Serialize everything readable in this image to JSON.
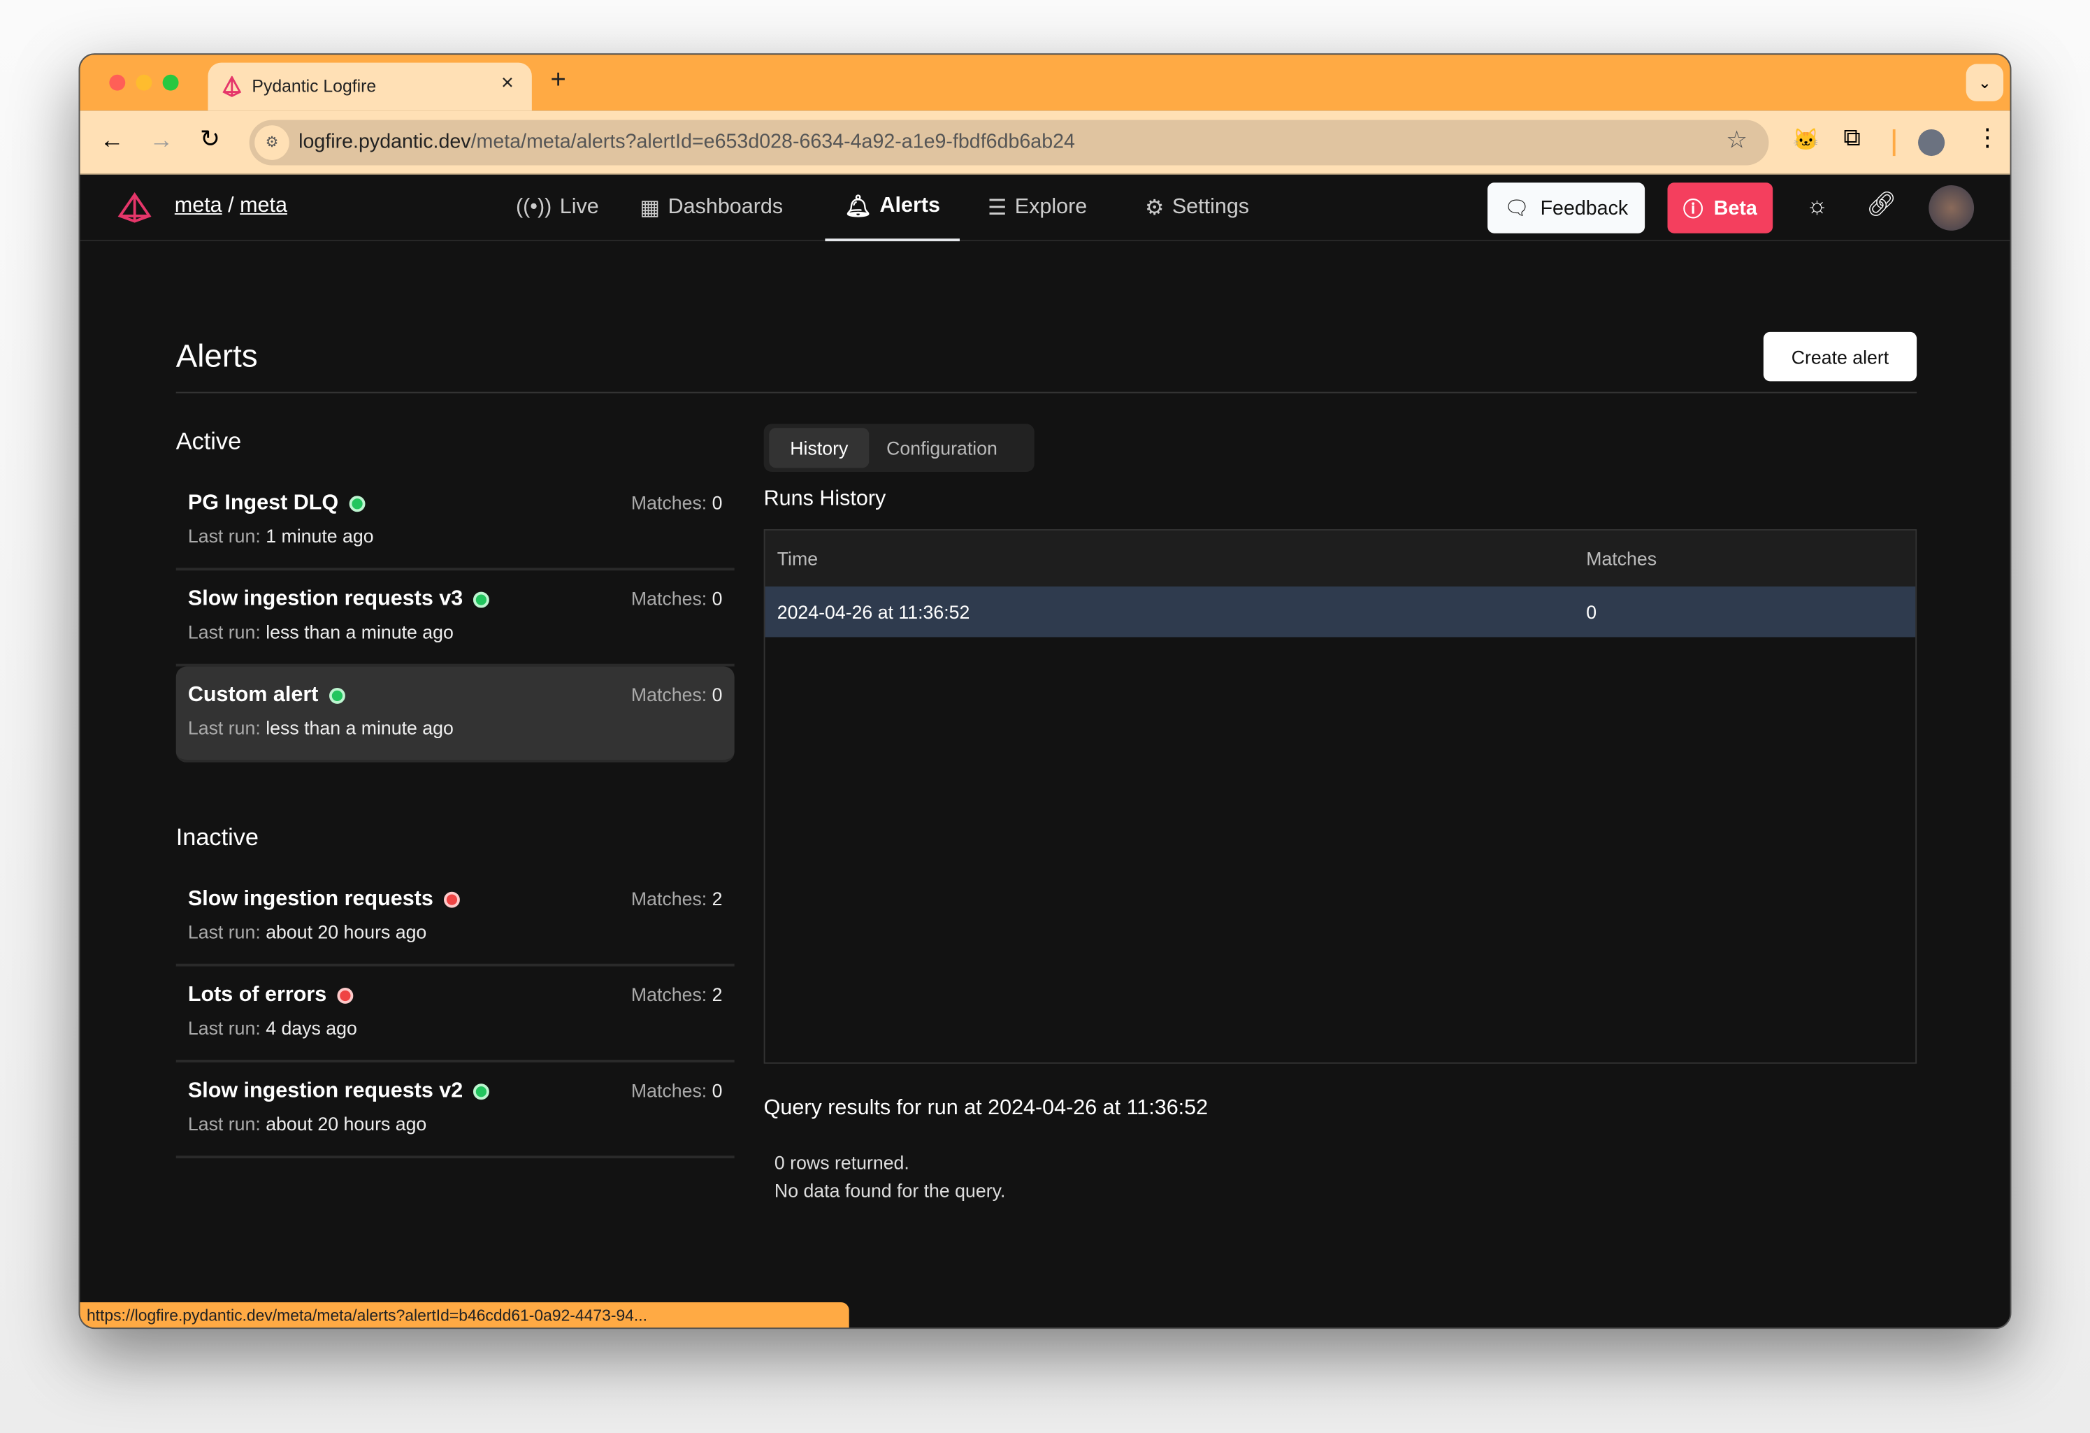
{
  "browser": {
    "tab_title": "Pydantic Logfire",
    "url_host": "logfire.pydantic.dev",
    "url_path": "/meta/meta/alerts?alertId=e653d028-6634-4a92-a1e9-fbdf6db6ab24",
    "status_url": "https://logfire.pydantic.dev/meta/meta/alerts?alertId=b46cdd61-0a92-4473-94..."
  },
  "header": {
    "org": "meta",
    "sep": "/",
    "project": "meta",
    "nav": [
      {
        "label": "Live",
        "icon": "broadcast-icon"
      },
      {
        "label": "Dashboards",
        "icon": "dashboard-icon"
      },
      {
        "label": "Alerts",
        "icon": "bell-icon",
        "active": true
      },
      {
        "label": "Explore",
        "icon": "explore-icon"
      },
      {
        "label": "Settings",
        "icon": "gear-icon"
      }
    ],
    "feedback": "Feedback",
    "beta": "Beta"
  },
  "colors": {
    "accent": "#F43F5E",
    "browser": "#FFAA44",
    "active": "#22c55e",
    "inactive": "#ef4444"
  },
  "page": {
    "title": "Alerts",
    "create": "Create alert",
    "active_heading": "Active",
    "inactive_heading": "Inactive",
    "last_run_label": "Last run:",
    "matches_label": "Matches:"
  },
  "active": [
    {
      "name": "PG Ingest DLQ",
      "status": "ok",
      "last_run": "1 minute ago",
      "matches": "0"
    },
    {
      "name": "Slow ingestion requests v3",
      "status": "ok",
      "last_run": "less than a minute ago",
      "matches": "0"
    },
    {
      "name": "Custom alert",
      "status": "ok",
      "last_run": "less than a minute ago",
      "matches": "0",
      "selected": true
    }
  ],
  "inactive": [
    {
      "name": "Slow ingestion requests",
      "status": "error",
      "last_run": "about 20 hours ago",
      "matches": "2"
    },
    {
      "name": "Lots of errors",
      "status": "error",
      "last_run": "4 days ago",
      "matches": "2"
    },
    {
      "name": "Slow ingestion requests v2",
      "status": "ok",
      "last_run": "about 20 hours ago",
      "matches": "0"
    }
  ],
  "detail": {
    "tabs": [
      "History",
      "Configuration"
    ],
    "runs_title": "Runs History",
    "columns": [
      "Time",
      "Matches"
    ],
    "rows": [
      {
        "time": "2024-04-26 at 11:36:52",
        "matches": "0"
      }
    ],
    "query_title": "Query results for run at 2024-04-26 at 11:36:52",
    "rows_returned": "0 rows returned.",
    "no_data": "No data found for the query."
  }
}
